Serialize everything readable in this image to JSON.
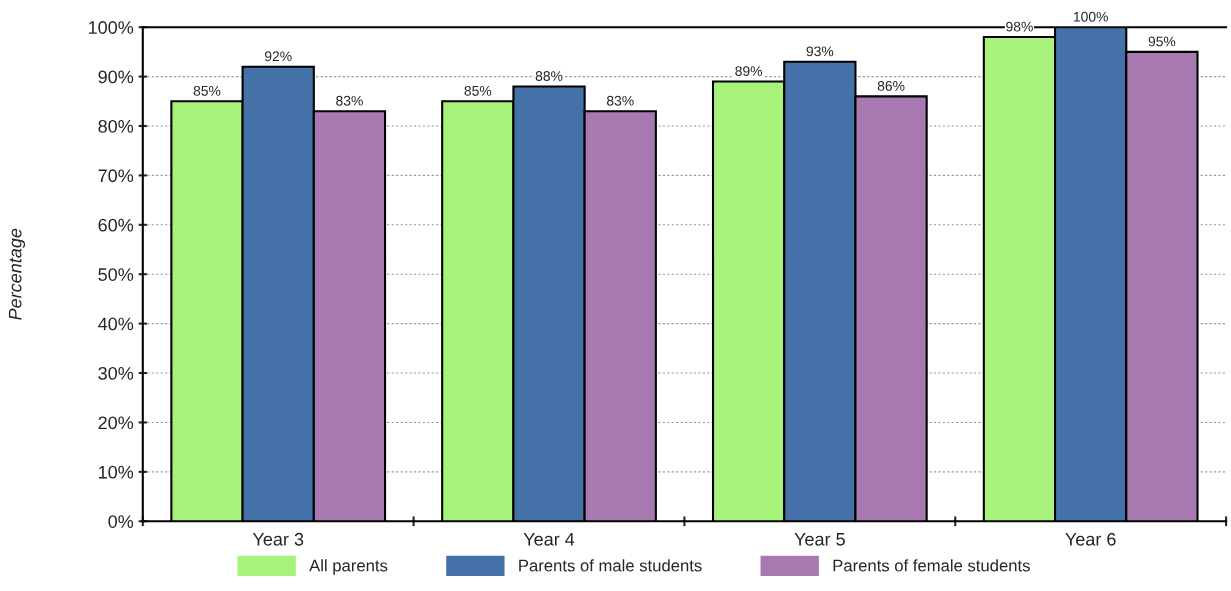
{
  "chart_data": {
    "type": "bar",
    "ylabel": "Percentage",
    "categories": [
      "Year 3",
      "Year 4",
      "Year 5",
      "Year 6"
    ],
    "series": [
      {
        "name": "All parents",
        "color": "#a6f27a",
        "values": [
          85,
          85,
          89,
          98
        ],
        "value_labels": [
          "85%",
          "85%",
          "89%",
          "98%"
        ]
      },
      {
        "name": "Parents of male students",
        "color": "#4472a8",
        "values": [
          92,
          88,
          93,
          100
        ],
        "value_labels": [
          "92%",
          "88%",
          "93%",
          "100%"
        ]
      },
      {
        "name": "Parents of female students",
        "color": "#a878b0",
        "values": [
          83,
          83,
          86,
          95
        ],
        "value_labels": [
          "83%",
          "83%",
          "86%",
          "95%"
        ]
      }
    ],
    "ylim": [
      0,
      100
    ],
    "yticks": [
      {
        "value": 0,
        "label": "0%"
      },
      {
        "value": 10,
        "label": "10%"
      },
      {
        "value": 20,
        "label": "20%"
      },
      {
        "value": 30,
        "label": "30%"
      },
      {
        "value": 40,
        "label": "40%"
      },
      {
        "value": 50,
        "label": "50%"
      },
      {
        "value": 60,
        "label": "60%"
      },
      {
        "value": 70,
        "label": "70%"
      },
      {
        "value": 80,
        "label": "80%"
      },
      {
        "value": 90,
        "label": "90%"
      },
      {
        "value": 100,
        "label": "100%"
      }
    ],
    "grid": "y",
    "legend": "bottom"
  }
}
